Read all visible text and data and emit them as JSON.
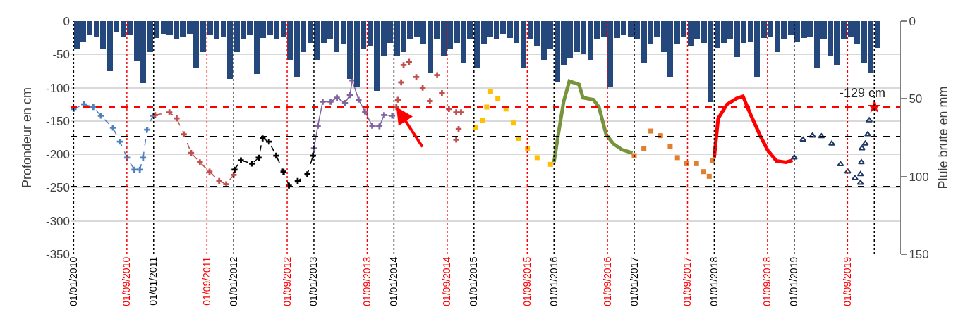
{
  "chart_data": {
    "type": "line",
    "ylabel": "Profondeur en cm",
    "y2label": "Pluie brute en mm",
    "xlim": [
      "2009-12-18",
      "2020-04-25"
    ],
    "ylim": [
      -350,
      0
    ],
    "yticks": [
      0,
      -50,
      -100,
      -150,
      -200,
      -250,
      -300,
      -350
    ],
    "y2lim": [
      150,
      0
    ],
    "y2ticks": [
      0,
      50,
      100,
      150
    ],
    "xticks": [
      {
        "value": "2010-01-01",
        "label": "01/01/2010"
      },
      {
        "value": "2010-09-01",
        "label": "01/09/2010"
      },
      {
        "value": "2011-01-01",
        "label": "01/01/2011"
      },
      {
        "value": "2011-09-01",
        "label": "01/09/2011"
      },
      {
        "value": "2012-01-01",
        "label": "01/01/2012"
      },
      {
        "value": "2012-09-01",
        "label": "01/09/2012"
      },
      {
        "value": "2013-01-01",
        "label": "01/01/2013"
      },
      {
        "value": "2013-09-01",
        "label": "01/09/2013"
      },
      {
        "value": "2014-01-01",
        "label": "01/01/2014"
      },
      {
        "value": "2014-09-01",
        "label": "01/09/2014"
      },
      {
        "value": "2015-01-01",
        "label": "01/01/2015"
      },
      {
        "value": "2015-09-01",
        "label": "01/09/2015"
      },
      {
        "value": "2016-01-01",
        "label": "01/01/2016"
      },
      {
        "value": "2016-09-01",
        "label": "01/09/2016"
      },
      {
        "value": "2017-01-01",
        "label": "01/01/2017"
      },
      {
        "value": "2017-09-01",
        "label": "01/09/2017"
      },
      {
        "value": "2018-01-01",
        "label": "01/01/2018"
      },
      {
        "value": "2018-09-01",
        "label": "01/09/2018"
      },
      {
        "value": "2019-01-01",
        "label": "01/01/2019"
      },
      {
        "value": "2019-09-01",
        "label": "01/09/2019"
      }
    ],
    "grid": "y",
    "ref_lines": [
      {
        "axis": "y",
        "value": -129,
        "label": "-129 cm",
        "color": "#ff0000",
        "line_style": "dashed"
      },
      {
        "axis": "y",
        "value": -173,
        "label": null,
        "color": "#000000",
        "line_style": "dashed"
      },
      {
        "axis": "y",
        "value": -248,
        "label": null,
        "color": "#000000",
        "line_style": "dashed"
      },
      {
        "axis": "x",
        "value": "2010-01-01",
        "color": "#000000",
        "line_style": "dotted"
      },
      {
        "axis": "x",
        "value": "2010-09-01",
        "color": "#ff0000",
        "line_style": "dotted"
      },
      {
        "axis": "x",
        "value": "2011-01-01",
        "color": "#000000",
        "line_style": "dotted"
      },
      {
        "axis": "x",
        "value": "2011-09-01",
        "color": "#ff0000",
        "line_style": "dotted"
      },
      {
        "axis": "x",
        "value": "2012-01-01",
        "color": "#000000",
        "line_style": "dotted"
      },
      {
        "axis": "x",
        "value": "2012-09-01",
        "color": "#ff0000",
        "line_style": "dotted"
      },
      {
        "axis": "x",
        "value": "2013-01-01",
        "color": "#000000",
        "line_style": "dotted"
      },
      {
        "axis": "x",
        "value": "2013-09-01",
        "color": "#ff0000",
        "line_style": "dotted"
      },
      {
        "axis": "x",
        "value": "2014-01-01",
        "color": "#000000",
        "line_style": "dotted"
      },
      {
        "axis": "x",
        "value": "2014-09-01",
        "color": "#ff0000",
        "line_style": "dotted"
      },
      {
        "axis": "x",
        "value": "2015-01-01",
        "color": "#000000",
        "line_style": "dotted"
      },
      {
        "axis": "x",
        "value": "2015-09-01",
        "color": "#ff0000",
        "line_style": "dotted"
      },
      {
        "axis": "x",
        "value": "2016-01-01",
        "color": "#000000",
        "line_style": "dotted"
      },
      {
        "axis": "x",
        "value": "2016-09-01",
        "color": "#ff0000",
        "line_style": "dotted"
      },
      {
        "axis": "x",
        "value": "2017-01-01",
        "color": "#000000",
        "line_style": "dotted"
      },
      {
        "axis": "x",
        "value": "2017-09-01",
        "color": "#ff0000",
        "line_style": "dotted"
      },
      {
        "axis": "x",
        "value": "2018-01-01",
        "color": "#000000",
        "line_style": "dotted"
      },
      {
        "axis": "x",
        "value": "2018-09-01",
        "color": "#ff0000",
        "line_style": "dotted"
      },
      {
        "axis": "x",
        "value": "2019-01-01",
        "color": "#000000",
        "line_style": "dotted"
      },
      {
        "axis": "x",
        "value": "2019-09-01",
        "color": "#ff0000",
        "line_style": "dotted"
      },
      {
        "axis": "x",
        "value": "2020-01-01",
        "color": "#000000",
        "line_style": "dotted"
      }
    ],
    "series": [
      {
        "type": "bar",
        "axis": "y2",
        "color": "#24477c",
        "x": [
          "2010-01-15",
          "2010-02-15",
          "2010-03-15",
          "2010-04-15",
          "2010-05-15",
          "2010-06-15",
          "2010-07-15",
          "2010-08-15",
          "2010-09-15",
          "2010-10-15",
          "2010-11-15",
          "2010-12-15",
          "2011-01-15",
          "2011-02-15",
          "2011-03-15",
          "2011-04-15",
          "2011-05-15",
          "2011-06-15",
          "2011-07-15",
          "2011-08-15",
          "2011-09-15",
          "2011-10-15",
          "2011-11-15",
          "2011-12-15",
          "2012-01-15",
          "2012-02-15",
          "2012-03-15",
          "2012-04-15",
          "2012-05-15",
          "2012-06-15",
          "2012-07-15",
          "2012-08-15",
          "2012-09-15",
          "2012-10-15",
          "2012-11-15",
          "2012-12-15",
          "2013-01-15",
          "2013-02-15",
          "2013-03-15",
          "2013-04-15",
          "2013-05-15",
          "2013-06-15",
          "2013-07-15",
          "2013-08-15",
          "2013-09-15",
          "2013-10-15",
          "2013-11-15",
          "2013-12-15",
          "2014-01-15",
          "2014-02-15",
          "2014-03-15",
          "2014-04-15",
          "2014-05-15",
          "2014-06-15",
          "2014-07-15",
          "2014-08-15",
          "2014-09-15",
          "2014-10-15",
          "2014-11-15",
          "2014-12-15",
          "2015-01-15",
          "2015-02-15",
          "2015-03-15",
          "2015-04-15",
          "2015-05-15",
          "2015-06-15",
          "2015-07-15",
          "2015-08-15",
          "2015-09-15",
          "2015-10-15",
          "2015-11-15",
          "2015-12-15",
          "2016-01-15",
          "2016-02-15",
          "2016-03-15",
          "2016-04-15",
          "2016-05-15",
          "2016-06-15",
          "2016-07-15",
          "2016-08-15",
          "2016-09-15",
          "2016-10-15",
          "2016-11-15",
          "2016-12-15",
          "2017-01-15",
          "2017-02-15",
          "2017-03-15",
          "2017-04-15",
          "2017-05-15",
          "2017-06-15",
          "2017-07-15",
          "2017-08-15",
          "2017-09-15",
          "2017-10-15",
          "2017-11-15",
          "2017-12-15",
          "2018-01-15",
          "2018-02-15",
          "2018-03-15",
          "2018-04-15",
          "2018-05-15",
          "2018-06-15",
          "2018-07-15",
          "2018-08-15",
          "2018-09-15",
          "2018-10-15",
          "2018-11-15",
          "2018-12-15",
          "2019-01-15",
          "2019-02-15",
          "2019-03-15",
          "2019-04-15",
          "2019-05-15",
          "2019-06-15",
          "2019-07-15",
          "2019-08-15",
          "2019-09-15",
          "2019-10-15",
          "2019-11-15",
          "2019-12-15",
          "2020-01-15"
        ],
        "values": [
          18,
          13,
          9,
          10,
          18,
          32,
          7,
          10,
          9,
          26,
          40,
          20,
          11,
          8,
          9,
          12,
          10,
          8,
          30,
          20,
          9,
          12,
          10,
          37,
          20,
          12,
          9,
          34,
          11,
          9,
          12,
          10,
          25,
          36,
          20,
          14,
          25,
          14,
          12,
          20,
          15,
          37,
          42,
          18,
          16,
          45,
          22,
          14,
          22,
          20,
          12,
          10,
          15,
          33,
          12,
          22,
          18,
          14,
          27,
          12,
          30,
          15,
          10,
          12,
          8,
          11,
          14,
          30,
          12,
          16,
          25,
          18,
          39,
          28,
          24,
          20,
          21,
          25,
          12,
          10,
          42,
          11,
          9,
          10,
          12,
          27,
          15,
          10,
          20,
          36,
          15,
          10,
          16,
          12,
          14,
          52,
          17,
          14,
          12,
          23,
          14,
          13,
          36,
          11,
          10,
          20,
          12,
          9,
          13,
          11,
          10,
          30,
          12,
          22,
          28,
          12,
          10,
          15,
          27,
          33,
          17
        ]
      },
      {
        "color": "#4f81bd",
        "marker": "cross",
        "line_style": "dashed",
        "x": [
          "2010-01-01",
          "2010-02-18",
          "2010-04-01",
          "2010-05-05",
          "2010-06-29",
          "2010-07-31",
          "2010-09-02",
          "2010-10-05",
          "2010-10-30",
          "2010-11-14",
          "2010-12-02",
          "2010-12-28"
        ],
        "values": [
          -132,
          -125,
          -129,
          -142,
          -160,
          -181,
          -205,
          -223,
          -223,
          -205,
          -163,
          -142
        ]
      },
      {
        "color": "#c0504d",
        "marker": "cross",
        "line_style": "dashed",
        "x": [
          "2011-01-08",
          "2011-03-14",
          "2011-04-16",
          "2011-05-19",
          "2011-06-21",
          "2011-07-31",
          "2011-09-13",
          "2011-10-27",
          "2011-11-28",
          "2012-01-01"
        ],
        "values": [
          -141,
          -137,
          -146,
          -170,
          -198,
          -212,
          -226,
          -240,
          -245,
          -231
        ]
      },
      {
        "color": "#000000",
        "marker": "cross",
        "line_style": "dashed",
        "x": [
          "2012-01-05",
          "2012-02-03",
          "2012-03-25",
          "2012-04-24",
          "2012-05-12",
          "2012-06-10",
          "2012-07-13",
          "2012-08-15",
          "2012-09-09",
          "2012-10-19",
          "2012-12-02",
          "2012-12-28"
        ],
        "values": [
          -223,
          -209,
          -214,
          -205,
          -176,
          -181,
          -202,
          -226,
          -247,
          -240,
          -230,
          -202
        ]
      },
      {
        "color": "#8064a2",
        "marker": "cross",
        "line_style": "solid",
        "x": [
          "2013-01-01",
          "2013-01-19",
          "2013-02-10",
          "2013-03-18",
          "2013-04-16",
          "2013-05-23",
          "2013-06-14",
          "2013-06-25",
          "2013-07-24",
          "2013-08-22",
          "2013-09-24",
          "2013-10-27",
          "2013-11-17",
          "2013-12-24"
        ],
        "values": [
          -191,
          -157,
          -121,
          -121,
          -115,
          -123,
          -111,
          -89,
          -118,
          -136,
          -157,
          -158,
          -141,
          -142
        ]
      },
      {
        "type": "scatter",
        "color": "#c0504d",
        "marker": "cross",
        "x": [
          "2014-01-12",
          "2014-01-19",
          "2014-02-03",
          "2014-02-14",
          "2014-03-11",
          "2014-04-13",
          "2014-05-12",
          "2014-06-14",
          "2014-07-17",
          "2014-08-08",
          "2014-09-09",
          "2014-10-12",
          "2014-11-03",
          "2014-10-23",
          "2014-10-12"
        ],
        "values": [
          -129,
          -118,
          -92,
          -66,
          -61,
          -84,
          -100,
          -120,
          -81,
          -108,
          -132,
          -137,
          -137,
          -162,
          -178
        ]
      },
      {
        "type": "scatter",
        "color": "#ffc000",
        "marker": "square",
        "x": [
          "2015-01-08",
          "2015-02-10",
          "2015-02-28",
          "2015-03-18",
          "2015-04-20",
          "2015-05-27",
          "2015-06-29",
          "2015-07-24",
          "2015-09-02",
          "2015-10-16",
          "2015-12-16"
        ],
        "values": [
          -160,
          -149,
          -129,
          -106,
          -116,
          -132,
          -153,
          -176,
          -191,
          -205,
          -215
        ]
      },
      {
        "color": "#77933c",
        "marker": "none",
        "line_style": "solid",
        "x": [
          "2016-01-01",
          "2016-01-19",
          "2016-02-14",
          "2016-03-11",
          "2016-04-24",
          "2016-05-12",
          "2016-06-29",
          "2016-07-24",
          "2016-08-26",
          "2016-09-27",
          "2016-11-06",
          "2016-12-24"
        ],
        "values": [
          -212,
          -173,
          -121,
          -90,
          -95,
          -115,
          -118,
          -129,
          -170,
          -184,
          -193,
          -198
        ]
      },
      {
        "type": "scatter",
        "color": "#e07f2e",
        "marker": "square",
        "x": [
          "2017-01-01",
          "2017-02-14",
          "2017-03-18",
          "2017-05-01",
          "2017-06-14",
          "2017-07-17",
          "2017-08-26",
          "2017-10-12",
          "2017-11-14",
          "2017-12-09",
          "2017-12-24"
        ],
        "values": [
          -202,
          -191,
          -165,
          -172,
          -188,
          -205,
          -214,
          -214,
          -226,
          -233,
          -209
        ]
      },
      {
        "color": "#ff0000",
        "marker": "none",
        "line_style": "solid",
        "x": [
          "2018-01-01",
          "2018-01-19",
          "2018-02-28",
          "2018-04-13",
          "2018-05-12",
          "2018-06-14",
          "2018-07-31",
          "2018-09-02",
          "2018-10-12",
          "2018-11-24",
          "2018-12-24"
        ],
        "values": [
          -205,
          -146,
          -125,
          -116,
          -113,
          -139,
          -173,
          -194,
          -210,
          -212,
          -209
        ]
      },
      {
        "type": "scatter",
        "color": "#1f3864",
        "marker": "triangle",
        "x": [
          "2019-01-01",
          "2019-02-10",
          "2019-03-25",
          "2019-05-05",
          "2019-06-21",
          "2019-07-31",
          "2019-09-02",
          "2019-10-05",
          "2019-10-30",
          "2019-10-30",
          "2019-11-03",
          "2019-11-06",
          "2019-11-21",
          "2019-12-02",
          "2019-12-09"
        ],
        "values": [
          -205,
          -178,
          -172,
          -173,
          -184,
          -215,
          -226,
          -236,
          -243,
          -230,
          -212,
          -191,
          -184,
          -170,
          -149
        ]
      },
      {
        "type": "scatter",
        "color": "#ff0000",
        "marker": "star",
        "x": [
          "2020-01-01"
        ],
        "values": [
          -129
        ]
      }
    ]
  }
}
